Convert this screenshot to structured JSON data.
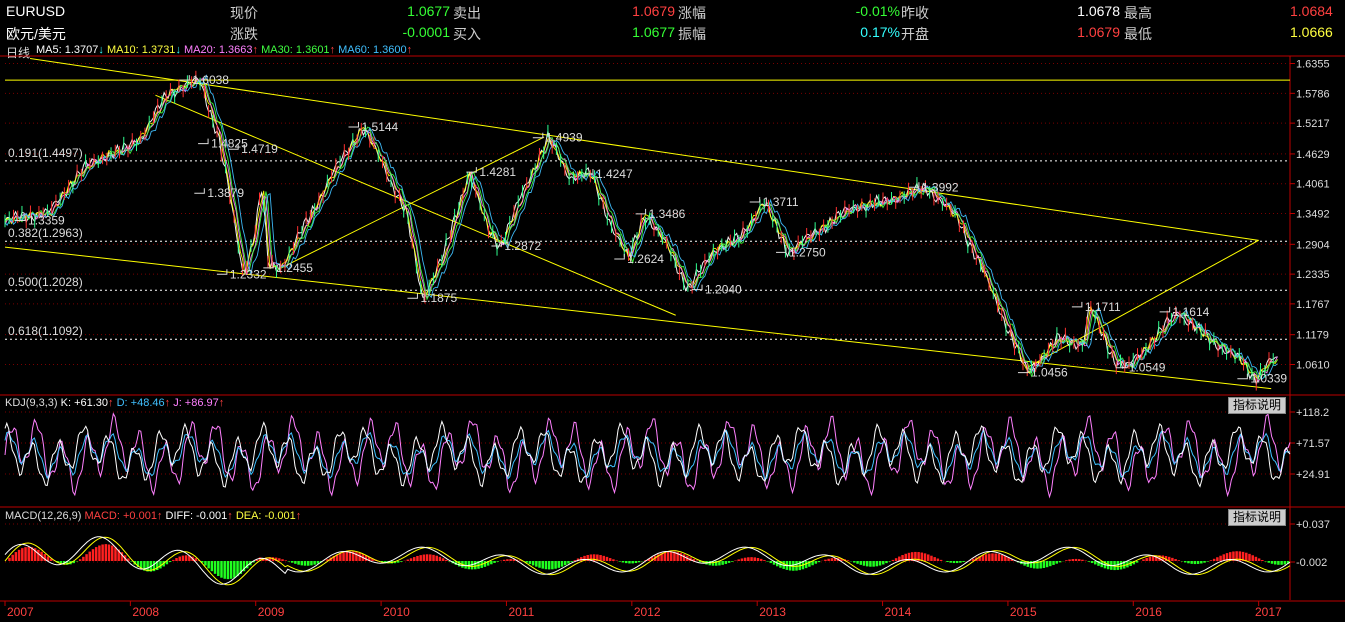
{
  "quote": {
    "symbol": "EURUSD",
    "name": "欧元/美元",
    "rows": [
      {
        "label": "现价",
        "value": "1.0677",
        "color": "#35ff35"
      },
      {
        "label": "涨跌",
        "value": "-0.0001",
        "color": "#35ff35"
      },
      {
        "label": "卖出",
        "value": "1.0679",
        "color": "#ff4040"
      },
      {
        "label": "买入",
        "value": "1.0677",
        "color": "#35ff35"
      },
      {
        "label": "涨幅",
        "value": "-0.01%",
        "color": "#35ff35"
      },
      {
        "label": "振幅",
        "value": "0.17%",
        "color": "#3ff"
      },
      {
        "label": "昨收",
        "value": "1.0678",
        "color": "#ffffff"
      },
      {
        "label": "开盘",
        "value": "1.0679",
        "color": "#ff4040"
      },
      {
        "label": "最高",
        "value": "1.0684",
        "color": "#ff4040"
      },
      {
        "label": "最低",
        "value": "1.0666",
        "color": "#ffff40"
      }
    ]
  },
  "period_label": "日线",
  "ma_legend": [
    {
      "text": "MA5: 1.3707",
      "arrow": "↓",
      "color": "#ffffff",
      "arrow_color": "#3ff"
    },
    {
      "text": "MA10: 1.3731",
      "arrow": "↓",
      "color": "#ffff40",
      "arrow_color": "#3ff"
    },
    {
      "text": "MA20: 1.3663",
      "arrow": "↑",
      "color": "#ff80ff",
      "arrow_color": "#ff4040"
    },
    {
      "text": "MA30: 1.3601",
      "arrow": "↑",
      "color": "#40ff40",
      "arrow_color": "#ff4040"
    },
    {
      "text": "MA60: 1.3600",
      "arrow": "↑",
      "color": "#40c0ff",
      "arrow_color": "#ff4040"
    }
  ],
  "kdj_legend": {
    "name": "KDJ(9,3,3)",
    "items": [
      {
        "text": "K: +61.30",
        "arrow": "↑",
        "color": "#ffffff"
      },
      {
        "text": "D: +48.46",
        "arrow": "↑",
        "color": "#40c0ff"
      },
      {
        "text": "J: +86.97",
        "arrow": "↑",
        "color": "#ff80ff"
      }
    ]
  },
  "macd_legend": {
    "name": "MACD(12,26,9)",
    "items": [
      {
        "text": "MACD: +0.001",
        "arrow": "↑",
        "color": "#ff4040"
      },
      {
        "text": "DIFF: -0.001",
        "arrow": "↑",
        "color": "#ffffff"
      },
      {
        "text": "DEA: -0.001",
        "arrow": "↑",
        "color": "#ffff40"
      }
    ]
  },
  "indicator_button": "指标说明",
  "chart_data": {
    "type": "line",
    "price_ticks": [
      "1.6355",
      "1.5786",
      "1.5217",
      "1.4629",
      "1.4061",
      "1.3492",
      "1.2904",
      "1.2335",
      "1.1767",
      "1.1179",
      "1.0610"
    ],
    "price_range": [
      1.0066,
      1.646
    ],
    "kdj_ticks": [
      "+118.2",
      "+71.57",
      "+24.91"
    ],
    "macd_ticks": [
      "+0.037",
      "-0.002"
    ],
    "years": [
      "2007",
      "2008",
      "2009",
      "2010",
      "2011",
      "2012",
      "2013",
      "2014",
      "2015",
      "2016",
      "2017"
    ],
    "fib_levels": [
      {
        "label": "0.191(1.4497)",
        "value": 1.4497
      },
      {
        "label": "0.382(1.2963)",
        "value": 1.2963
      },
      {
        "label": "0.500(1.2028)",
        "value": 1.2028
      },
      {
        "label": "0.618(1.1092)",
        "value": 1.1092
      }
    ],
    "top_level": 1.6038,
    "series_points": [
      {
        "t": 2007.0,
        "v": 1.335
      },
      {
        "t": 2007.15,
        "v": 1.345
      },
      {
        "t": 2007.35,
        "v": 1.35
      },
      {
        "t": 2007.5,
        "v": 1.4
      },
      {
        "t": 2007.65,
        "v": 1.44
      },
      {
        "t": 2007.8,
        "v": 1.46
      },
      {
        "t": 2007.95,
        "v": 1.47
      },
      {
        "t": 2008.1,
        "v": 1.5
      },
      {
        "t": 2008.3,
        "v": 1.58
      },
      {
        "t": 2008.55,
        "v": 1.6038
      },
      {
        "t": 2008.7,
        "v": 1.5
      },
      {
        "t": 2008.78,
        "v": 1.4
      },
      {
        "t": 2008.9,
        "v": 1.2332
      },
      {
        "t": 2008.98,
        "v": 1.3
      },
      {
        "t": 2009.05,
        "v": 1.4
      },
      {
        "t": 2009.1,
        "v": 1.25
      },
      {
        "t": 2009.2,
        "v": 1.2455
      },
      {
        "t": 2009.4,
        "v": 1.33
      },
      {
        "t": 2009.6,
        "v": 1.42
      },
      {
        "t": 2009.85,
        "v": 1.5144
      },
      {
        "t": 2010.0,
        "v": 1.45
      },
      {
        "t": 2010.2,
        "v": 1.35
      },
      {
        "t": 2010.33,
        "v": 1.1875
      },
      {
        "t": 2010.5,
        "v": 1.27
      },
      {
        "t": 2010.7,
        "v": 1.4281
      },
      {
        "t": 2010.85,
        "v": 1.32
      },
      {
        "t": 2010.95,
        "v": 1.2872
      },
      {
        "t": 2011.15,
        "v": 1.4
      },
      {
        "t": 2011.33,
        "v": 1.4939
      },
      {
        "t": 2011.5,
        "v": 1.42
      },
      {
        "t": 2011.67,
        "v": 1.4247
      },
      {
        "t": 2011.85,
        "v": 1.32
      },
      {
        "t": 2011.97,
        "v": 1.2624
      },
      {
        "t": 2012.1,
        "v": 1.3486
      },
      {
        "t": 2012.3,
        "v": 1.28
      },
      {
        "t": 2012.45,
        "v": 1.204
      },
      {
        "t": 2012.65,
        "v": 1.28
      },
      {
        "t": 2012.85,
        "v": 1.3
      },
      {
        "t": 2013.05,
        "v": 1.3711
      },
      {
        "t": 2013.2,
        "v": 1.3
      },
      {
        "t": 2013.25,
        "v": 1.275
      },
      {
        "t": 2013.5,
        "v": 1.32
      },
      {
        "t": 2013.75,
        "v": 1.36
      },
      {
        "t": 2014.0,
        "v": 1.37
      },
      {
        "t": 2014.35,
        "v": 1.3992
      },
      {
        "t": 2014.6,
        "v": 1.34
      },
      {
        "t": 2014.8,
        "v": 1.24
      },
      {
        "t": 2015.0,
        "v": 1.13
      },
      {
        "t": 2015.15,
        "v": 1.0456
      },
      {
        "t": 2015.4,
        "v": 1.11
      },
      {
        "t": 2015.6,
        "v": 1.1
      },
      {
        "t": 2015.65,
        "v": 1.1711
      },
      {
        "t": 2015.85,
        "v": 1.07
      },
      {
        "t": 2015.95,
        "v": 1.0549
      },
      {
        "t": 2016.2,
        "v": 1.12
      },
      {
        "t": 2016.35,
        "v": 1.1614
      },
      {
        "t": 2016.6,
        "v": 1.11
      },
      {
        "t": 2016.85,
        "v": 1.07
      },
      {
        "t": 2016.97,
        "v": 1.0339
      },
      {
        "t": 2017.1,
        "v": 1.07
      },
      {
        "t": 2017.15,
        "v": 1.0677
      }
    ],
    "annotations": [
      {
        "t": 2007.12,
        "v": 1.3359,
        "text": "1.3359"
      },
      {
        "t": 2008.43,
        "v": 1.6038,
        "text": "1.6038"
      },
      {
        "t": 2008.58,
        "v": 1.4825,
        "text": "1.4825"
      },
      {
        "t": 2008.82,
        "v": 1.4719,
        "text": "1.4719"
      },
      {
        "t": 2008.55,
        "v": 1.3879,
        "text": "1.3879"
      },
      {
        "t": 2008.73,
        "v": 1.2332,
        "text": "1.2332"
      },
      {
        "t": 2009.1,
        "v": 1.2455,
        "text": "1.2455"
      },
      {
        "t": 2009.78,
        "v": 1.5144,
        "text": "1.5144"
      },
      {
        "t": 2010.25,
        "v": 1.1875,
        "text": "1.1875"
      },
      {
        "t": 2010.72,
        "v": 1.4281,
        "text": "1.4281"
      },
      {
        "t": 2010.92,
        "v": 1.2872,
        "text": "1.2872"
      },
      {
        "t": 2011.25,
        "v": 1.4939,
        "text": "1.4939"
      },
      {
        "t": 2011.65,
        "v": 1.4247,
        "text": "1.4247"
      },
      {
        "t": 2011.9,
        "v": 1.2624,
        "text": "1.2624"
      },
      {
        "t": 2012.07,
        "v": 1.3486,
        "text": "1.3486"
      },
      {
        "t": 2012.52,
        "v": 1.204,
        "text": "1.2040"
      },
      {
        "t": 2012.98,
        "v": 1.3711,
        "text": "1.3711"
      },
      {
        "t": 2013.19,
        "v": 1.275,
        "text": "1.2750"
      },
      {
        "t": 2014.25,
        "v": 1.3992,
        "text": "1.3992"
      },
      {
        "t": 2015.12,
        "v": 1.0456,
        "text": "1.0456"
      },
      {
        "t": 2015.55,
        "v": 1.1711,
        "text": "1.1711"
      },
      {
        "t": 2015.9,
        "v": 1.0549,
        "text": "1.0549"
      },
      {
        "t": 2016.25,
        "v": 1.1614,
        "text": "1.1614"
      },
      {
        "t": 2016.87,
        "v": 1.0339,
        "text": "1.0339"
      }
    ]
  }
}
